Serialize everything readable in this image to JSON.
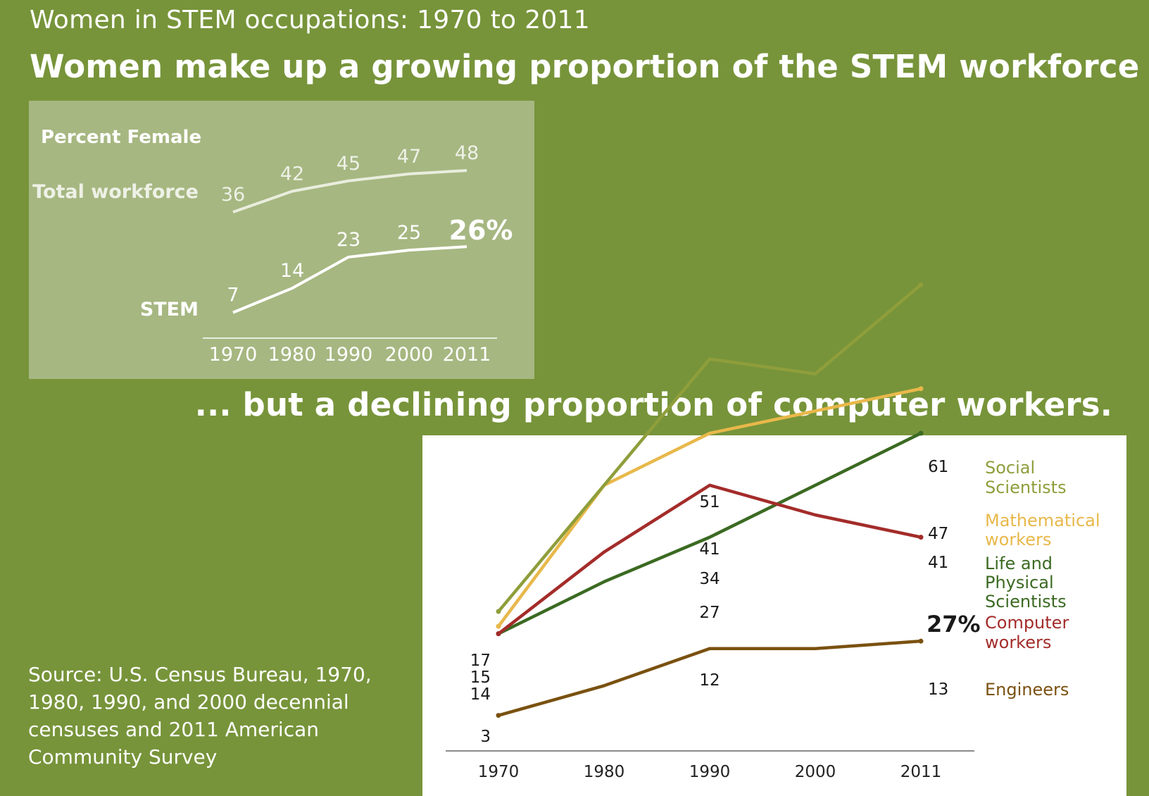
{
  "subtitle": "Women in STEM occupations: 1970 to 2011",
  "headline_top": "Women make up a growing proportion of the STEM workforce ...",
  "headline_bottom": "... but a declining proportion of computer workers.",
  "source": "Source: U.S. Census Bureau, 1970, 1980, 1990, and 2000 decennial censuses and 2011 American Community Survey",
  "chart_data": [
    {
      "type": "line",
      "title": "Percent Female",
      "x": [
        "1970",
        "1980",
        "1990",
        "2000",
        "2011"
      ],
      "series": [
        {
          "name": "Total workforce",
          "values": [
            36,
            42,
            45,
            47,
            48
          ],
          "labels": [
            "36",
            "42",
            "45",
            "47",
            "48"
          ],
          "color": "#e9eddd"
        },
        {
          "name": "STEM",
          "values": [
            7,
            14,
            23,
            25,
            26
          ],
          "labels": [
            "7",
            "14",
            "23",
            "25",
            "26%"
          ],
          "color": "#ffffff"
        }
      ],
      "ylim": [
        0,
        52
      ],
      "grid": false
    },
    {
      "type": "line",
      "x": [
        "1970",
        "1980",
        "1990",
        "2000",
        "2011"
      ],
      "series": [
        {
          "name_lines": [
            "Social",
            "Scientists"
          ],
          "values": [
            17,
            34,
            51,
            49,
            61
          ],
          "color": "#8f9e3b"
        },
        {
          "name_lines": [
            "Mathematical",
            "workers"
          ],
          "values": [
            15,
            34,
            41,
            44,
            47
          ],
          "color": "#e8b84a"
        },
        {
          "name_lines": [
            "Life and",
            "Physical",
            "Scientists"
          ],
          "values": [
            14,
            21,
            27,
            34,
            41
          ],
          "color": "#3b6a22"
        },
        {
          "name_lines": [
            "Computer",
            "workers"
          ],
          "values": [
            14,
            25,
            34,
            30,
            27
          ],
          "color": "#a32c2a"
        },
        {
          "name_lines": [
            "Engineers"
          ],
          "values": [
            3,
            7,
            12,
            12,
            13
          ],
          "color": "#7a5110"
        }
      ],
      "value_labels": [
        {
          "text": "17"
        },
        {
          "text": "15"
        },
        {
          "text": "14"
        },
        {
          "text": "3"
        },
        {
          "text": "51"
        },
        {
          "text": "41"
        },
        {
          "text": "34"
        },
        {
          "text": "27"
        },
        {
          "text": "12"
        },
        {
          "text": "61"
        },
        {
          "text": "47"
        },
        {
          "text": "41"
        },
        {
          "text": "27%"
        },
        {
          "text": "13"
        }
      ],
      "ylim": [
        0,
        65
      ],
      "grid": false,
      "legend": "right"
    }
  ]
}
